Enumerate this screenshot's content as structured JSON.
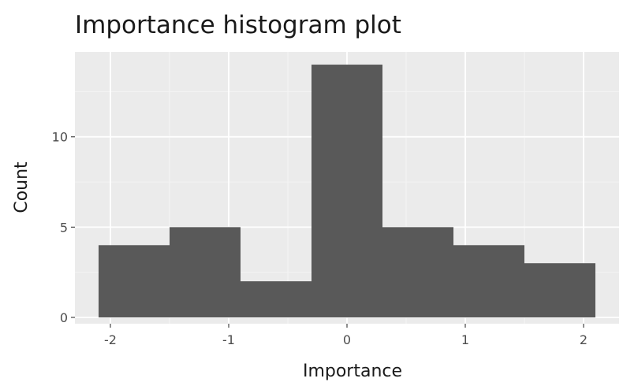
{
  "chart_data": {
    "type": "bar",
    "title": "Importance histogram plot",
    "xlabel": "Importance",
    "ylabel": "Count",
    "bins": [
      {
        "x_start": -2.1,
        "x_end": -1.5,
        "count": 4
      },
      {
        "x_start": -1.5,
        "x_end": -0.9,
        "count": 5
      },
      {
        "x_start": -0.9,
        "x_end": -0.3,
        "count": 2
      },
      {
        "x_start": -0.3,
        "x_end": 0.3,
        "count": 14
      },
      {
        "x_start": 0.3,
        "x_end": 0.9,
        "count": 5
      },
      {
        "x_start": 0.9,
        "x_end": 1.5,
        "count": 4
      },
      {
        "x_start": 1.5,
        "x_end": 2.1,
        "count": 3
      }
    ],
    "xlim": [
      -2.3,
      2.3
    ],
    "ylim": [
      -0.35,
      14.7
    ],
    "x_ticks": [
      {
        "value": -2,
        "label": "-2"
      },
      {
        "value": -1,
        "label": "-1"
      },
      {
        "value": 0,
        "label": "0"
      },
      {
        "value": 1,
        "label": "1"
      },
      {
        "value": 2,
        "label": "2"
      }
    ],
    "y_ticks": [
      {
        "value": 0,
        "label": "0"
      },
      {
        "value": 5,
        "label": "5"
      },
      {
        "value": 10,
        "label": "10"
      }
    ],
    "grid": true,
    "colors": {
      "bar_fill": "#595959",
      "panel_background": "#ebebeb",
      "grid_major": "#ffffff",
      "grid_minor": "#f5f5f5",
      "tick_mark": "#333333"
    }
  }
}
